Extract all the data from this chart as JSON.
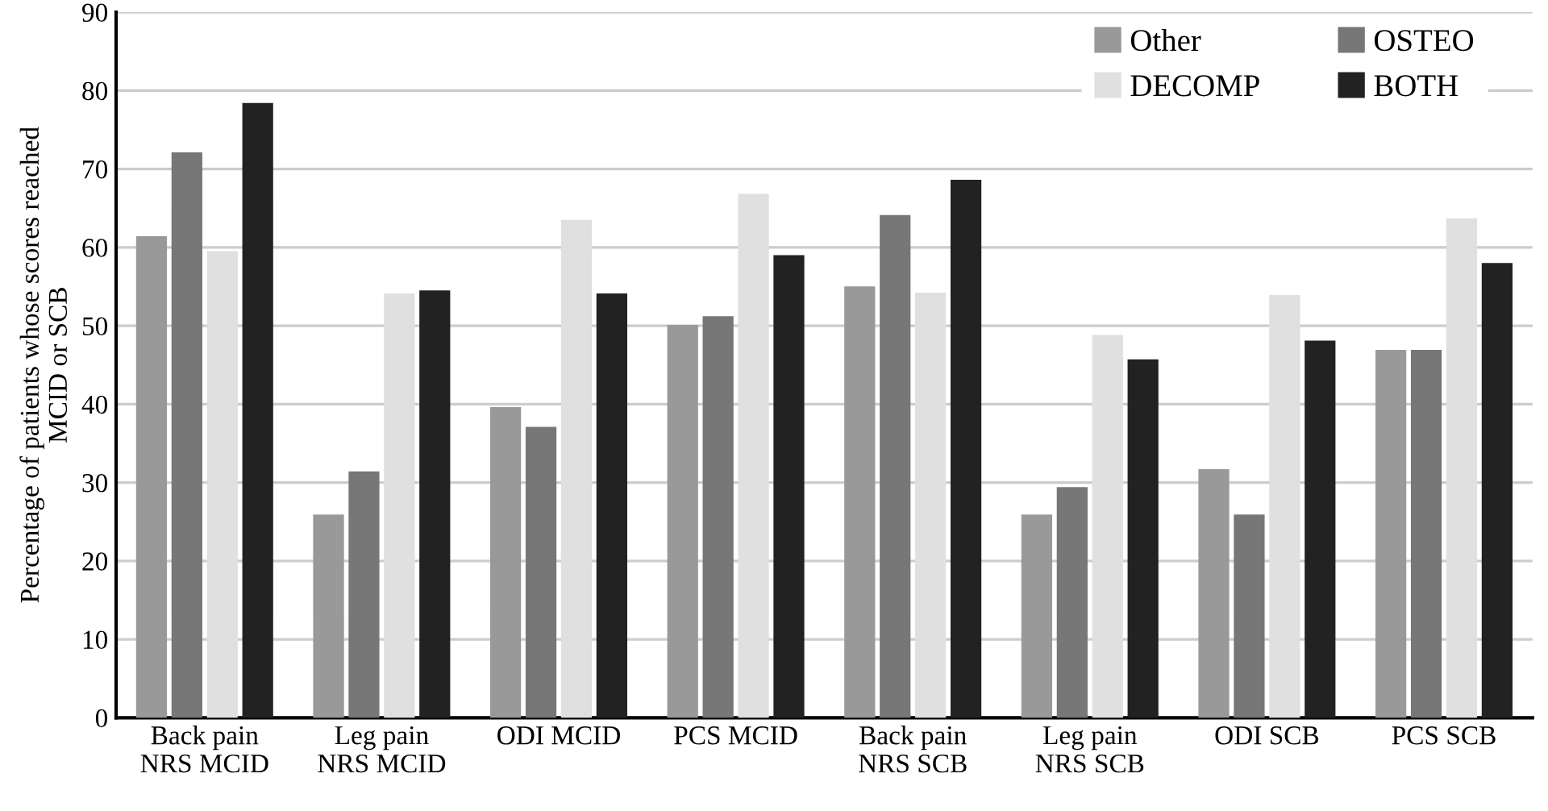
{
  "chart_data": {
    "type": "bar",
    "ylabel": "Percentage of patients whose scores reached\nMCID or SCB",
    "categories": [
      "Back pain\nNRS MCID",
      "Leg pain\nNRS MCID",
      "ODI MCID",
      "PCS MCID",
      "Back pain\nNRS SCB",
      "Leg pain\nNRS SCB",
      "ODI SCB",
      "PCS SCB"
    ],
    "series": [
      {
        "name": "Other",
        "color": "#999999",
        "values": [
          61.3,
          25.8,
          39.5,
          50,
          54.9,
          25.8,
          31.6,
          46.8
        ]
      },
      {
        "name": "OSTEO",
        "color": "#777777",
        "values": [
          72,
          31.3,
          37,
          51.1,
          64,
          29.3,
          25.8,
          46.8
        ]
      },
      {
        "name": "DECOMP",
        "color": "#e0e0e0",
        "values": [
          59.4,
          54,
          63.4,
          66.7,
          54.1,
          48.7,
          53.8,
          63.6
        ]
      },
      {
        "name": "BOTH",
        "color": "#222222",
        "values": [
          78.3,
          54.4,
          54,
          58.9,
          68.5,
          45.6,
          48,
          57.9
        ]
      }
    ],
    "ylim": [
      0,
      90
    ],
    "yticks": [
      0,
      10,
      20,
      30,
      40,
      50,
      60,
      70,
      80,
      90
    ],
    "grid": "y",
    "legend": "top right"
  }
}
